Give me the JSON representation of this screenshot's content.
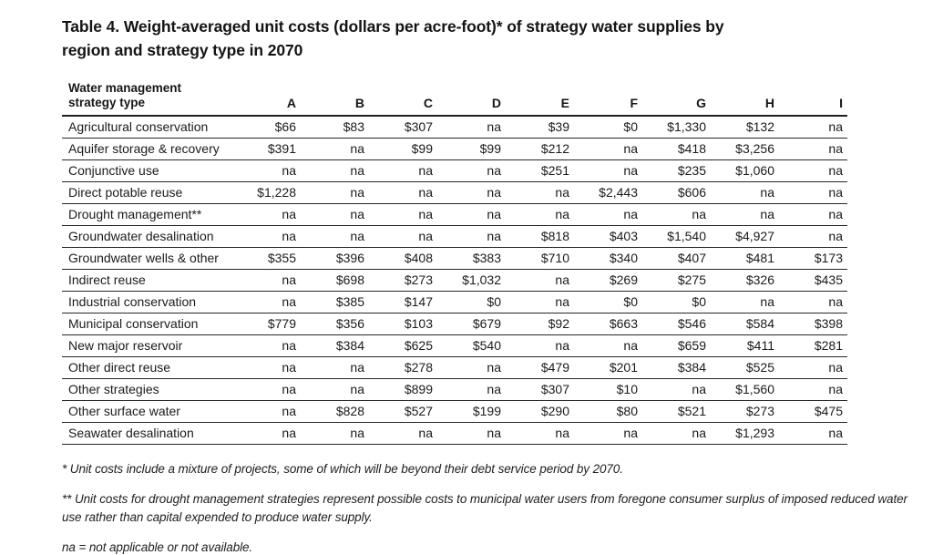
{
  "title": "Table 4. Weight-averaged unit costs (dollars per acre-foot)* of strategy water supplies by region and strategy type in 2070",
  "table": {
    "row_header": {
      "line1": "Water management",
      "line2": "strategy type"
    },
    "columns": [
      "A",
      "B",
      "C",
      "D",
      "E",
      "F",
      "G",
      "H",
      "I"
    ],
    "rows": [
      {
        "label": "Agricultural conservation",
        "values": [
          "$66",
          "$83",
          "$307",
          "na",
          "$39",
          "$0",
          "$1,330",
          "$132",
          "na"
        ]
      },
      {
        "label": "Aquifer storage & recovery",
        "values": [
          "$391",
          "na",
          "$99",
          "$99",
          "$212",
          "na",
          "$418",
          "$3,256",
          "na"
        ]
      },
      {
        "label": "Conjunctive use",
        "values": [
          "na",
          "na",
          "na",
          "na",
          "$251",
          "na",
          "$235",
          "$1,060",
          "na"
        ]
      },
      {
        "label": "Direct potable reuse",
        "values": [
          "$1,228",
          "na",
          "na",
          "na",
          "na",
          "$2,443",
          "$606",
          "na",
          "na"
        ]
      },
      {
        "label": "Drought management**",
        "values": [
          "na",
          "na",
          "na",
          "na",
          "na",
          "na",
          "na",
          "na",
          "na"
        ]
      },
      {
        "label": "Groundwater desalination",
        "values": [
          "na",
          "na",
          "na",
          "na",
          "$818",
          "$403",
          "$1,540",
          "$4,927",
          "na"
        ]
      },
      {
        "label": "Groundwater wells & other",
        "values": [
          "$355",
          "$396",
          "$408",
          "$383",
          "$710",
          "$340",
          "$407",
          "$481",
          "$173"
        ]
      },
      {
        "label": "Indirect reuse",
        "values": [
          "na",
          "$698",
          "$273",
          "$1,032",
          "na",
          "$269",
          "$275",
          "$326",
          "$435"
        ]
      },
      {
        "label": "Industrial conservation",
        "values": [
          "na",
          "$385",
          "$147",
          "$0",
          "na",
          "$0",
          "$0",
          "na",
          "na"
        ]
      },
      {
        "label": "Municipal conservation",
        "values": [
          "$779",
          "$356",
          "$103",
          "$679",
          "$92",
          "$663",
          "$546",
          "$584",
          "$398"
        ]
      },
      {
        "label": "New major reservoir",
        "values": [
          "na",
          "$384",
          "$625",
          "$540",
          "na",
          "na",
          "$659",
          "$411",
          "$281"
        ]
      },
      {
        "label": "Other direct reuse",
        "values": [
          "na",
          "na",
          "$278",
          "na",
          "$479",
          "$201",
          "$384",
          "$525",
          "na"
        ]
      },
      {
        "label": "Other strategies",
        "values": [
          "na",
          "na",
          "$899",
          "na",
          "$307",
          "$10",
          "na",
          "$1,560",
          "na"
        ]
      },
      {
        "label": "Other surface water",
        "values": [
          "na",
          "$828",
          "$527",
          "$199",
          "$290",
          "$80",
          "$521",
          "$273",
          "$475"
        ]
      },
      {
        "label": "Seawater desalination",
        "values": [
          "na",
          "na",
          "na",
          "na",
          "na",
          "na",
          "na",
          "$1,293",
          "na"
        ]
      }
    ]
  },
  "footnotes": [
    "* Unit costs include a mixture of projects, some of which will be beyond their debt service period by 2070.",
    "** Unit costs for drought management strategies represent possible costs to municipal water users from foregone consumer surplus of imposed reduced water use rather than capital expended to produce water supply.",
    "na = not applicable or not available."
  ],
  "colors": {
    "background": "#ffffff",
    "text": "#1b1b1b",
    "rule": "#1f1f1f"
  }
}
